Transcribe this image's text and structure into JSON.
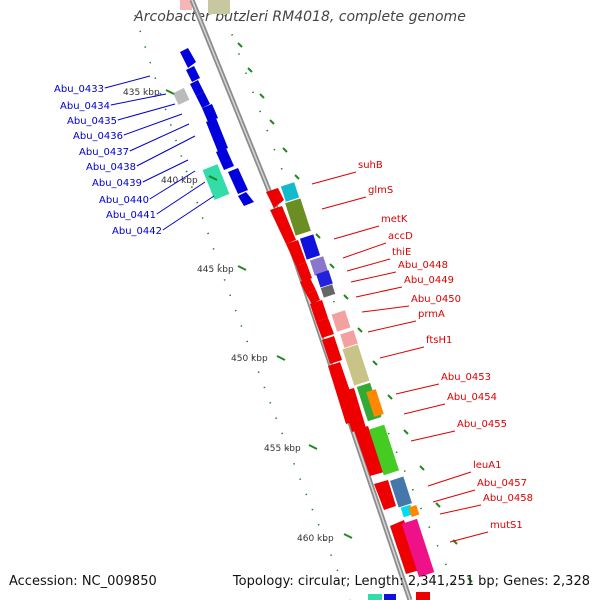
{
  "title": "Arcobacter butzleri RM4018, complete genome",
  "footer": {
    "accession": "Accession: NC_009850",
    "summary": "Topology: circular; Length: 2,341,251 bp; Genes: 2,328"
  },
  "colors": {
    "backbone": "#8c8c8c",
    "left_labels": "#0000cc",
    "right_labels": "#dd0000",
    "ticks": "#228822",
    "ruler_text": "#333333"
  },
  "ruler": {
    "labels": [
      "435 kbp",
      "440 kbp",
      "445 kbp",
      "450 kbp",
      "455 kbp",
      "460 kbp"
    ]
  },
  "left_genes": [
    "Abu_0433",
    "Abu_0434",
    "Abu_0435",
    "Abu_0436",
    "Abu_0437",
    "Abu_0438",
    "Abu_0439",
    "Abu_0440",
    "Abu_0441",
    "Abu_0442"
  ],
  "right_genes": [
    "suhB",
    "glmS",
    "metK",
    "accD",
    "thiE",
    "Abu_0448",
    "Abu_0449",
    "Abu_0450",
    "prmA",
    "ftsH1",
    "Abu_0453",
    "Abu_0454",
    "Abu_0455",
    "leuA1",
    "Abu_0457",
    "Abu_0458",
    "mutS1"
  ]
}
